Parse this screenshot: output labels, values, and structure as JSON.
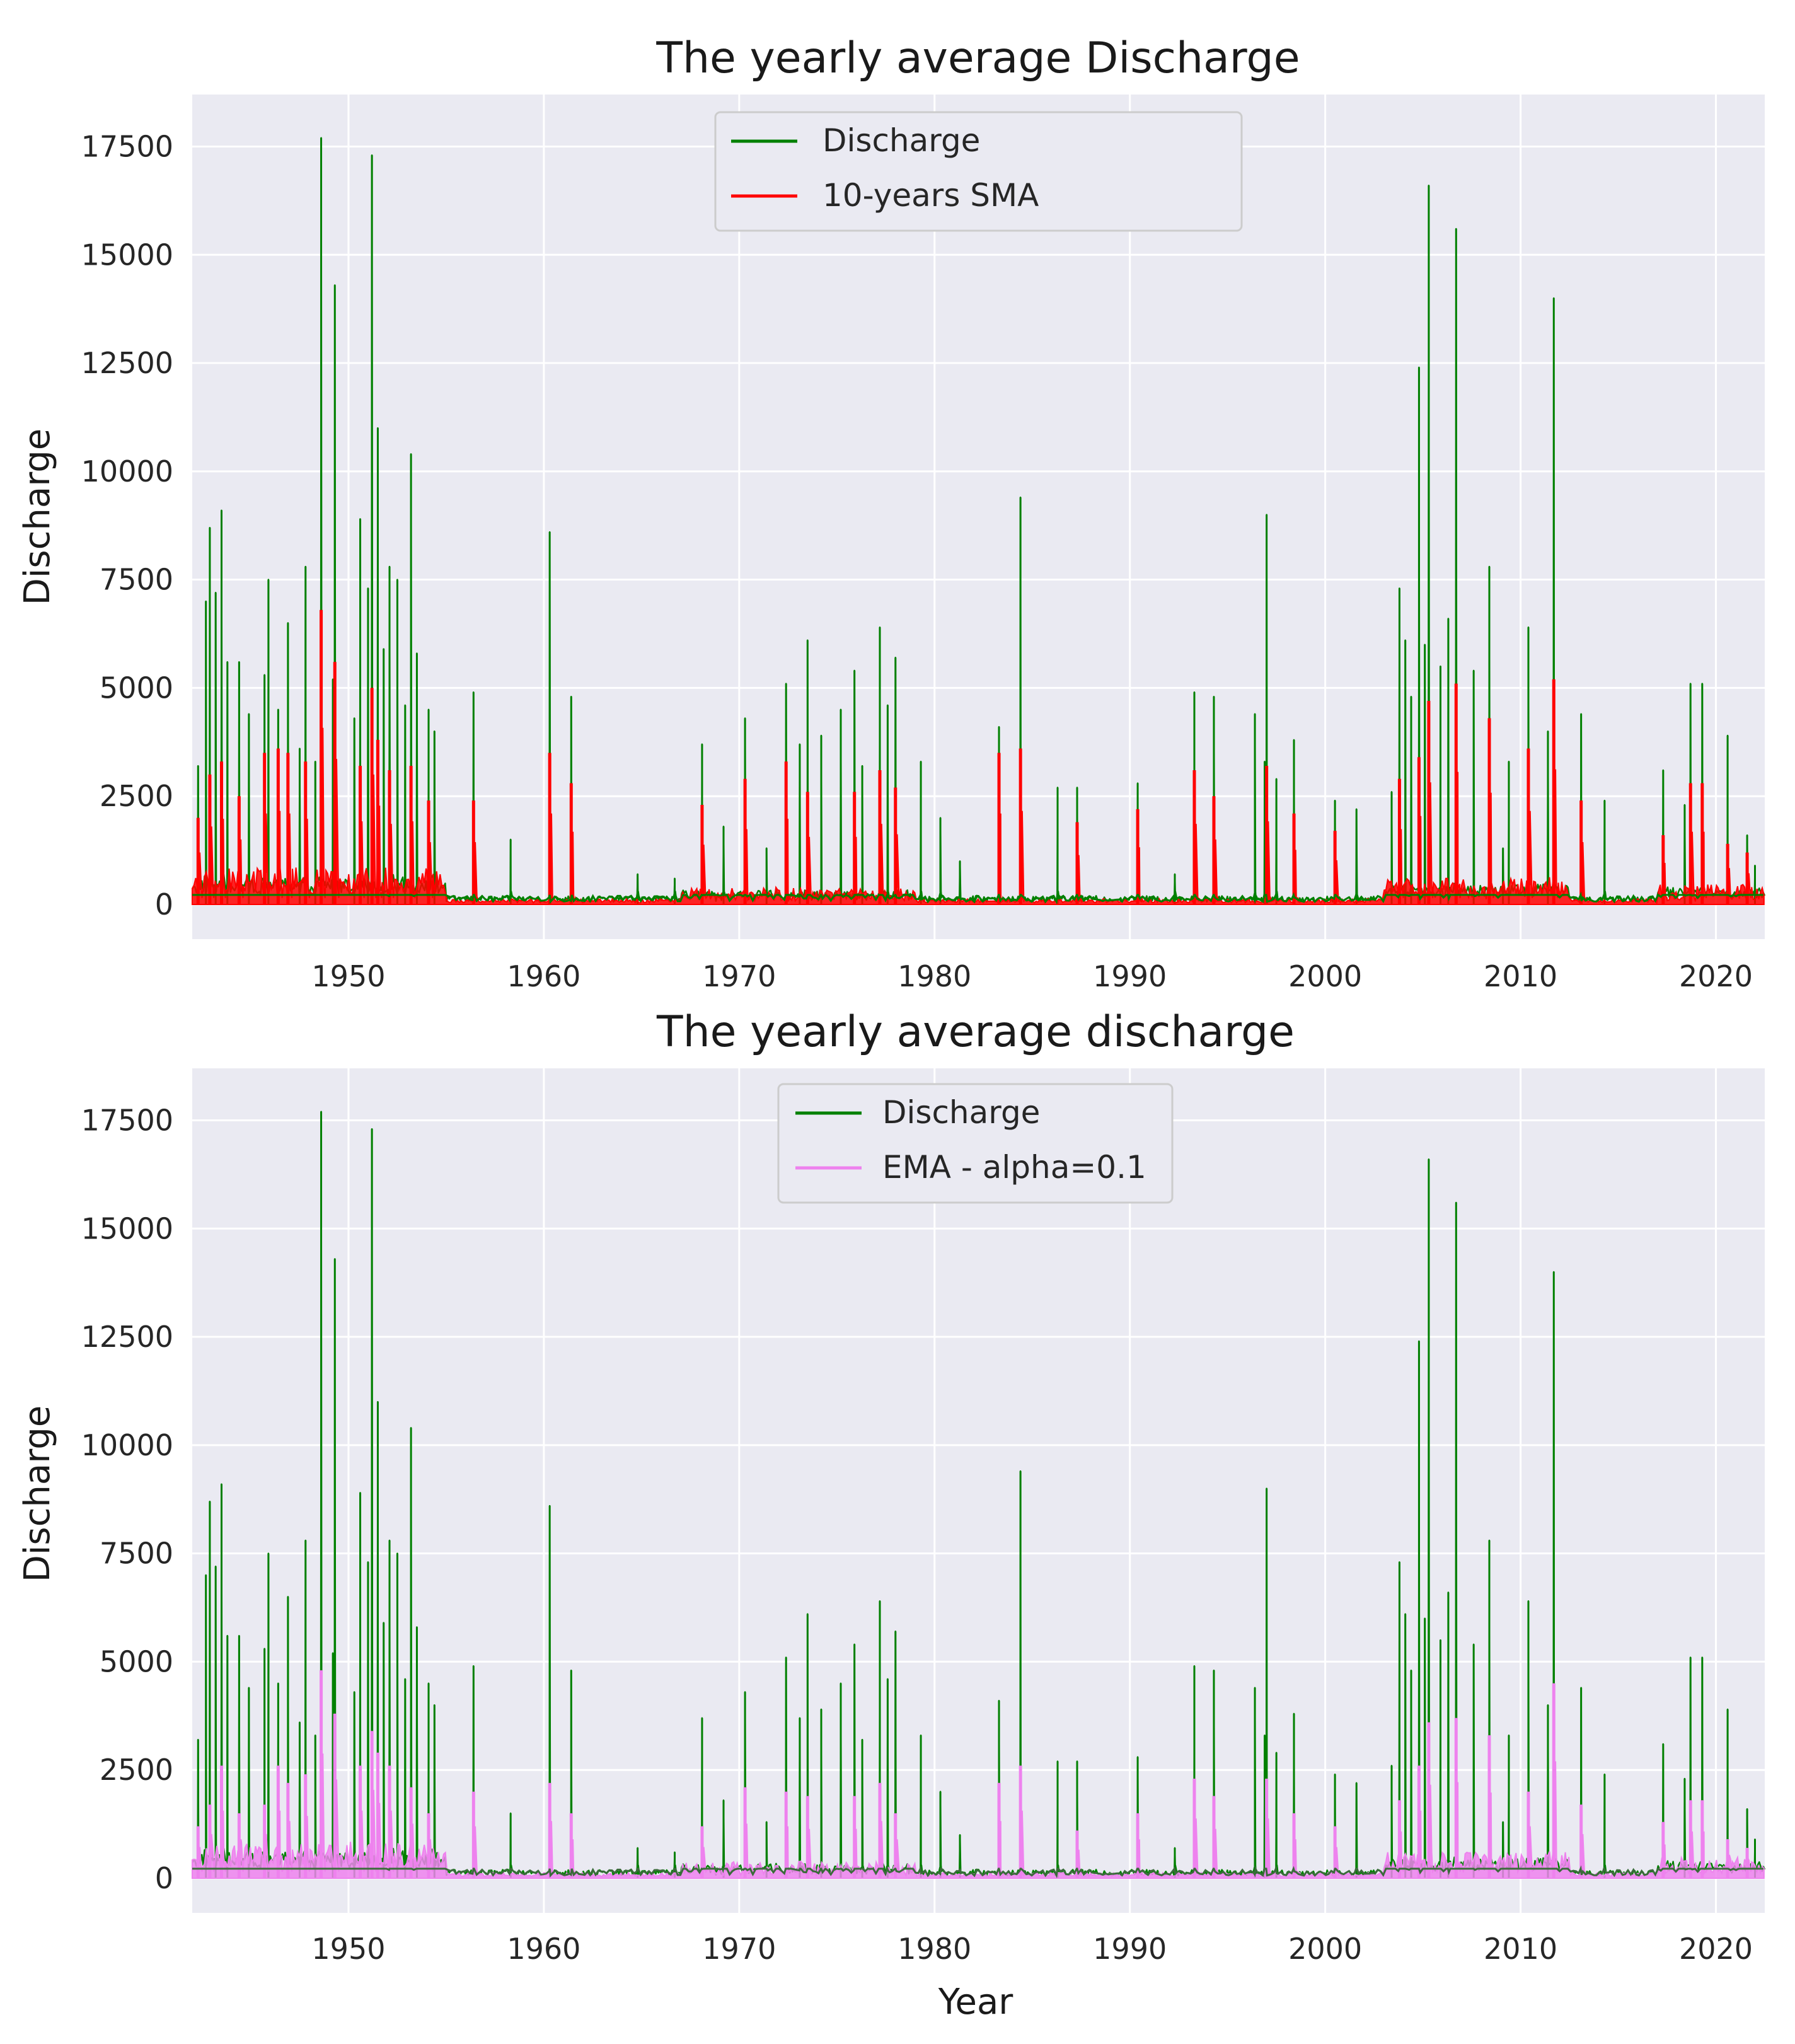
{
  "chart_data": [
    {
      "type": "line",
      "title": "The yearly average Discharge",
      "xlabel": "",
      "ylabel": "Discharge",
      "xlim": [
        1942,
        2022.5
      ],
      "ylim": [
        -800,
        18700
      ],
      "xticks": [
        1950,
        1960,
        1970,
        1980,
        1990,
        2000,
        2010,
        2020
      ],
      "xtick_labels": [
        "1950",
        "1960",
        "1970",
        "1980",
        "1990",
        "2000",
        "2010",
        "2020"
      ],
      "yticks": [
        0,
        2500,
        5000,
        7500,
        10000,
        12500,
        15000,
        17500
      ],
      "ytick_labels": [
        "0",
        "2500",
        "5000",
        "7500",
        "10000",
        "12500",
        "15000",
        "17500"
      ],
      "grid": true,
      "legend_position": "top-center",
      "colors": {
        "background": "#eaeaf2",
        "grid": "#ffffff",
        "discharge": "#008000",
        "smooth": "#ff0000"
      },
      "series": [
        {
          "name": "Discharge",
          "role": "raw",
          "color": "#008000"
        },
        {
          "name": "10-years SMA",
          "role": "smooth",
          "color": "#ff0000"
        }
      ],
      "peaks": [
        [
          1942.3,
          3200
        ],
        [
          1942.7,
          7000
        ],
        [
          1942.9,
          8700
        ],
        [
          1943.2,
          7200
        ],
        [
          1943.5,
          9100
        ],
        [
          1943.8,
          5600
        ],
        [
          1944.4,
          5600
        ],
        [
          1944.9,
          4400
        ],
        [
          1945.7,
          5300
        ],
        [
          1945.9,
          7500
        ],
        [
          1946.4,
          4500
        ],
        [
          1946.9,
          6500
        ],
        [
          1947.5,
          3600
        ],
        [
          1947.8,
          7800
        ],
        [
          1948.3,
          3300
        ],
        [
          1948.6,
          17700
        ],
        [
          1949.2,
          5200
        ],
        [
          1949.3,
          14300
        ],
        [
          1950.3,
          4300
        ],
        [
          1950.6,
          8900
        ],
        [
          1951.0,
          7300
        ],
        [
          1951.2,
          17300
        ],
        [
          1951.5,
          11000
        ],
        [
          1951.8,
          5900
        ],
        [
          1952.1,
          7800
        ],
        [
          1952.5,
          7500
        ],
        [
          1952.9,
          4600
        ],
        [
          1953.2,
          10400
        ],
        [
          1953.5,
          5800
        ],
        [
          1954.1,
          4500
        ],
        [
          1954.4,
          4000
        ],
        [
          1956.4,
          4900
        ],
        [
          1958.3,
          1500
        ],
        [
          1960.3,
          8600
        ],
        [
          1961.4,
          4800
        ],
        [
          1964.8,
          700
        ],
        [
          1966.7,
          600
        ],
        [
          1968.1,
          3700
        ],
        [
          1969.2,
          1800
        ],
        [
          1970.3,
          4300
        ],
        [
          1971.4,
          1300
        ],
        [
          1972.4,
          5100
        ],
        [
          1973.1,
          3700
        ],
        [
          1973.5,
          6100
        ],
        [
          1974.2,
          3900
        ],
        [
          1975.2,
          4500
        ],
        [
          1975.9,
          5400
        ],
        [
          1976.3,
          3200
        ],
        [
          1977.2,
          6400
        ],
        [
          1977.6,
          4600
        ],
        [
          1978.0,
          5700
        ],
        [
          1979.3,
          3300
        ],
        [
          1980.3,
          2000
        ],
        [
          1981.3,
          1000
        ],
        [
          1983.3,
          4100
        ],
        [
          1984.4,
          9400
        ],
        [
          1986.3,
          2700
        ],
        [
          1987.3,
          2700
        ],
        [
          1990.4,
          2800
        ],
        [
          1992.3,
          700
        ],
        [
          1993.3,
          4900
        ],
        [
          1994.3,
          4800
        ],
        [
          1996.4,
          4400
        ],
        [
          1996.9,
          3300
        ],
        [
          1997.0,
          9000
        ],
        [
          1997.5,
          2900
        ],
        [
          1998.4,
          3800
        ],
        [
          2000.5,
          2400
        ],
        [
          2001.6,
          2200
        ],
        [
          2003.4,
          2600
        ],
        [
          2003.8,
          7300
        ],
        [
          2004.1,
          6100
        ],
        [
          2004.4,
          4800
        ],
        [
          2004.8,
          12400
        ],
        [
          2005.1,
          6000
        ],
        [
          2005.3,
          16600
        ],
        [
          2005.9,
          5500
        ],
        [
          2006.3,
          6600
        ],
        [
          2006.7,
          15600
        ],
        [
          2007.6,
          5400
        ],
        [
          2008.4,
          7800
        ],
        [
          2009.1,
          1300
        ],
        [
          2009.4,
          3300
        ],
        [
          2010.4,
          6400
        ],
        [
          2011.4,
          4000
        ],
        [
          2011.7,
          14000
        ],
        [
          2013.1,
          4400
        ],
        [
          2014.3,
          2400
        ],
        [
          2017.3,
          3100
        ],
        [
          2018.4,
          2300
        ],
        [
          2018.7,
          5100
        ],
        [
          2019.3,
          5100
        ],
        [
          2020.6,
          3900
        ],
        [
          2021.6,
          1600
        ],
        [
          2022.0,
          900
        ]
      ],
      "smooth_peaks": [
        [
          1942.3,
          2000
        ],
        [
          1942.9,
          3000
        ],
        [
          1943.5,
          3300
        ],
        [
          1944.4,
          2500
        ],
        [
          1945.7,
          3500
        ],
        [
          1946.4,
          3600
        ],
        [
          1946.9,
          3500
        ],
        [
          1947.8,
          3300
        ],
        [
          1948.6,
          6800
        ],
        [
          1949.3,
          5600
        ],
        [
          1950.6,
          3200
        ],
        [
          1951.2,
          5000
        ],
        [
          1951.5,
          3800
        ],
        [
          1952.1,
          3100
        ],
        [
          1953.2,
          3200
        ],
        [
          1954.1,
          2400
        ],
        [
          1956.4,
          2400
        ],
        [
          1960.3,
          3500
        ],
        [
          1961.4,
          2800
        ],
        [
          1968.1,
          2300
        ],
        [
          1970.3,
          2900
        ],
        [
          1972.4,
          3300
        ],
        [
          1973.5,
          2600
        ],
        [
          1975.9,
          2600
        ],
        [
          1977.2,
          3100
        ],
        [
          1978.0,
          2700
        ],
        [
          1983.3,
          3500
        ],
        [
          1984.4,
          3600
        ],
        [
          1987.3,
          1900
        ],
        [
          1990.4,
          2200
        ],
        [
          1993.3,
          3100
        ],
        [
          1994.3,
          2500
        ],
        [
          1997.0,
          3200
        ],
        [
          1998.4,
          2100
        ],
        [
          2000.5,
          1700
        ],
        [
          2003.8,
          2900
        ],
        [
          2004.8,
          3400
        ],
        [
          2005.3,
          4700
        ],
        [
          2006.7,
          5100
        ],
        [
          2008.4,
          4300
        ],
        [
          2010.4,
          3600
        ],
        [
          2011.7,
          5200
        ],
        [
          2013.1,
          2400
        ],
        [
          2017.3,
          1600
        ],
        [
          2018.7,
          2800
        ],
        [
          2019.3,
          2800
        ],
        [
          2020.6,
          1400
        ],
        [
          2021.6,
          1200
        ]
      ]
    },
    {
      "type": "line",
      "title": "The yearly average discharge",
      "xlabel": "Year",
      "ylabel": "Discharge",
      "xlim": [
        1942,
        2022.5
      ],
      "ylim": [
        -800,
        18700
      ],
      "xticks": [
        1950,
        1960,
        1970,
        1980,
        1990,
        2000,
        2010,
        2020
      ],
      "xtick_labels": [
        "1950",
        "1960",
        "1970",
        "1980",
        "1990",
        "2000",
        "2010",
        "2020"
      ],
      "yticks": [
        0,
        2500,
        5000,
        7500,
        10000,
        12500,
        15000,
        17500
      ],
      "ytick_labels": [
        "0",
        "2500",
        "5000",
        "7500",
        "10000",
        "12500",
        "15000",
        "17500"
      ],
      "grid": true,
      "legend_position": "top-center",
      "colors": {
        "background": "#eaeaf2",
        "grid": "#ffffff",
        "discharge": "#008000",
        "smooth": "#ee82ee"
      },
      "series": [
        {
          "name": "Discharge",
          "role": "raw",
          "color": "#008000"
        },
        {
          "name": "EMA - alpha=0.1",
          "role": "smooth",
          "color": "#ee82ee"
        }
      ],
      "peaks": [
        [
          1942.3,
          3200
        ],
        [
          1942.7,
          7000
        ],
        [
          1942.9,
          8700
        ],
        [
          1943.2,
          7200
        ],
        [
          1943.5,
          9100
        ],
        [
          1943.8,
          5600
        ],
        [
          1944.4,
          5600
        ],
        [
          1944.9,
          4400
        ],
        [
          1945.7,
          5300
        ],
        [
          1945.9,
          7500
        ],
        [
          1946.4,
          4500
        ],
        [
          1946.9,
          6500
        ],
        [
          1947.5,
          3600
        ],
        [
          1947.8,
          7800
        ],
        [
          1948.3,
          3300
        ],
        [
          1948.6,
          17700
        ],
        [
          1949.2,
          5200
        ],
        [
          1949.3,
          14300
        ],
        [
          1950.3,
          4300
        ],
        [
          1950.6,
          8900
        ],
        [
          1951.0,
          7300
        ],
        [
          1951.2,
          17300
        ],
        [
          1951.5,
          11000
        ],
        [
          1951.8,
          5900
        ],
        [
          1952.1,
          7800
        ],
        [
          1952.5,
          7500
        ],
        [
          1952.9,
          4600
        ],
        [
          1953.2,
          10400
        ],
        [
          1953.5,
          5800
        ],
        [
          1954.1,
          4500
        ],
        [
          1954.4,
          4000
        ],
        [
          1956.4,
          4900
        ],
        [
          1958.3,
          1500
        ],
        [
          1960.3,
          8600
        ],
        [
          1961.4,
          4800
        ],
        [
          1964.8,
          700
        ],
        [
          1966.7,
          600
        ],
        [
          1968.1,
          3700
        ],
        [
          1969.2,
          1800
        ],
        [
          1970.3,
          4300
        ],
        [
          1971.4,
          1300
        ],
        [
          1972.4,
          5100
        ],
        [
          1973.1,
          3700
        ],
        [
          1973.5,
          6100
        ],
        [
          1974.2,
          3900
        ],
        [
          1975.2,
          4500
        ],
        [
          1975.9,
          5400
        ],
        [
          1976.3,
          3200
        ],
        [
          1977.2,
          6400
        ],
        [
          1977.6,
          4600
        ],
        [
          1978.0,
          5700
        ],
        [
          1979.3,
          3300
        ],
        [
          1980.3,
          2000
        ],
        [
          1981.3,
          1000
        ],
        [
          1983.3,
          4100
        ],
        [
          1984.4,
          9400
        ],
        [
          1986.3,
          2700
        ],
        [
          1987.3,
          2700
        ],
        [
          1990.4,
          2800
        ],
        [
          1992.3,
          700
        ],
        [
          1993.3,
          4900
        ],
        [
          1994.3,
          4800
        ],
        [
          1996.4,
          4400
        ],
        [
          1996.9,
          3300
        ],
        [
          1997.0,
          9000
        ],
        [
          1997.5,
          2900
        ],
        [
          1998.4,
          3800
        ],
        [
          2000.5,
          2400
        ],
        [
          2001.6,
          2200
        ],
        [
          2003.4,
          2600
        ],
        [
          2003.8,
          7300
        ],
        [
          2004.1,
          6100
        ],
        [
          2004.4,
          4800
        ],
        [
          2004.8,
          12400
        ],
        [
          2005.1,
          6000
        ],
        [
          2005.3,
          16600
        ],
        [
          2005.9,
          5500
        ],
        [
          2006.3,
          6600
        ],
        [
          2006.7,
          15600
        ],
        [
          2007.6,
          5400
        ],
        [
          2008.4,
          7800
        ],
        [
          2009.1,
          1300
        ],
        [
          2009.4,
          3300
        ],
        [
          2010.4,
          6400
        ],
        [
          2011.4,
          4000
        ],
        [
          2011.7,
          14000
        ],
        [
          2013.1,
          4400
        ],
        [
          2014.3,
          2400
        ],
        [
          2017.3,
          3100
        ],
        [
          2018.4,
          2300
        ],
        [
          2018.7,
          5100
        ],
        [
          2019.3,
          5100
        ],
        [
          2020.6,
          3900
        ],
        [
          2021.6,
          1600
        ],
        [
          2022.0,
          900
        ]
      ],
      "smooth_peaks": [
        [
          1942.3,
          1200
        ],
        [
          1942.9,
          1700
        ],
        [
          1943.5,
          2600
        ],
        [
          1944.4,
          1500
        ],
        [
          1945.7,
          1700
        ],
        [
          1946.4,
          2600
        ],
        [
          1946.9,
          2200
        ],
        [
          1947.8,
          2400
        ],
        [
          1948.6,
          4800
        ],
        [
          1949.3,
          3800
        ],
        [
          1950.6,
          2600
        ],
        [
          1951.2,
          3400
        ],
        [
          1951.5,
          2900
        ],
        [
          1952.1,
          2600
        ],
        [
          1953.2,
          2100
        ],
        [
          1954.1,
          1500
        ],
        [
          1956.4,
          2000
        ],
        [
          1960.3,
          2200
        ],
        [
          1961.4,
          1500
        ],
        [
          1968.1,
          1200
        ],
        [
          1970.3,
          2100
        ],
        [
          1972.4,
          2000
        ],
        [
          1973.5,
          1900
        ],
        [
          1975.9,
          1900
        ],
        [
          1977.2,
          2200
        ],
        [
          1978.0,
          1500
        ],
        [
          1983.3,
          2200
        ],
        [
          1984.4,
          2600
        ],
        [
          1987.3,
          1100
        ],
        [
          1990.4,
          1500
        ],
        [
          1993.3,
          2300
        ],
        [
          1994.3,
          1900
        ],
        [
          1997.0,
          2300
        ],
        [
          1998.4,
          1500
        ],
        [
          2000.5,
          1200
        ],
        [
          2003.8,
          1800
        ],
        [
          2004.8,
          2600
        ],
        [
          2005.3,
          3600
        ],
        [
          2006.7,
          3700
        ],
        [
          2008.4,
          3300
        ],
        [
          2010.4,
          2000
        ],
        [
          2011.7,
          4500
        ],
        [
          2013.1,
          1700
        ],
        [
          2017.3,
          1300
        ],
        [
          2018.7,
          1800
        ],
        [
          2019.3,
          1800
        ],
        [
          2020.6,
          900
        ],
        [
          2021.6,
          700
        ]
      ]
    }
  ]
}
